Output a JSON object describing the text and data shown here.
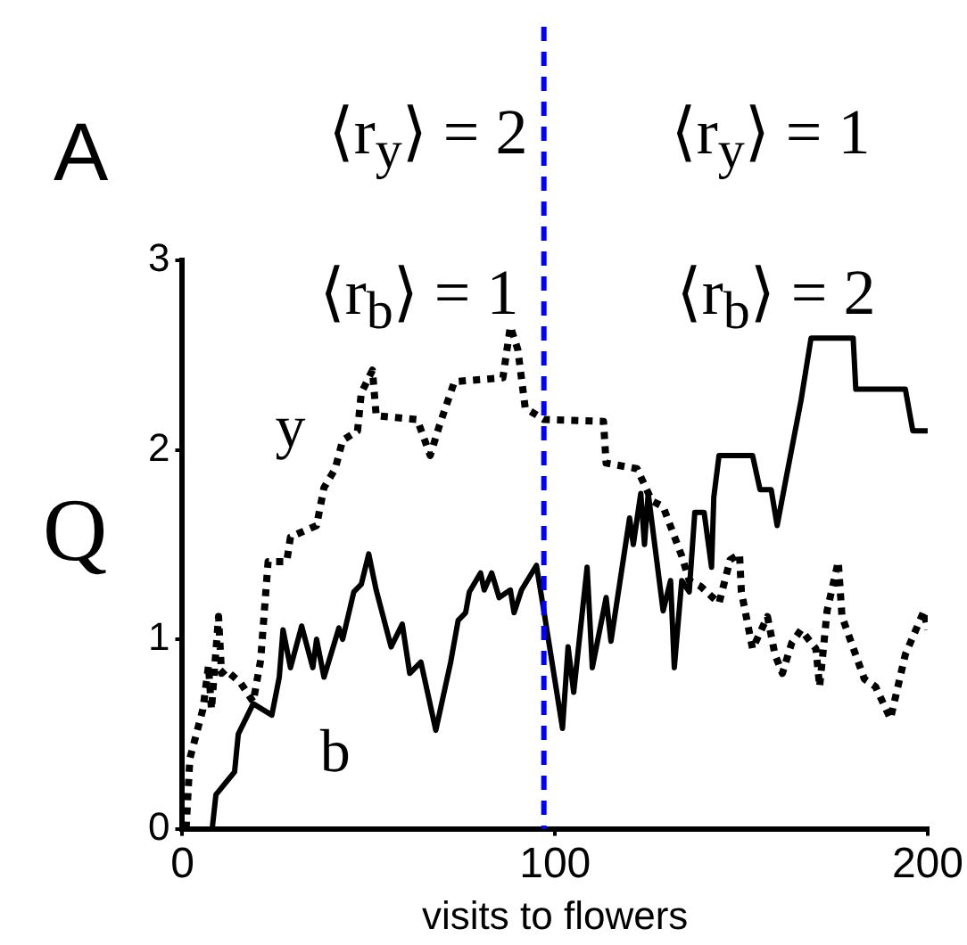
{
  "chart_data": {
    "type": "line",
    "title": "A",
    "xlabel": "visits to flowers",
    "ylabel": "Q",
    "annotations": [
      "⟨r$_{y}$⟩ = 2",
      "⟨r$_{y}$⟩ = 1",
      "⟨r$_{b}$⟩ = 1",
      "⟨r$_{b}$⟩ = 2"
    ],
    "xlim": [
      0,
      200
    ],
    "xticks": [
      0,
      100,
      200
    ],
    "ylim": [
      0,
      3
    ],
    "yticks": [
      0,
      1,
      2,
      3
    ],
    "grid": false,
    "legend": false,
    "marker": "none",
    "ref_lines": [
      {
        "axis": "x",
        "value": 97,
        "color": "#0000ff",
        "line_style": "dashed"
      }
    ],
    "series": [
      {
        "name": "y",
        "color": "#000000",
        "line_style": "dotted",
        "x": [
          1,
          2,
          5.5,
          7,
          7.8,
          9.7,
          10.5,
          11.6,
          15.6,
          19,
          21,
          23,
          28,
          29,
          36,
          38,
          41,
          43,
          47,
          48,
          51,
          52,
          63,
          66.5,
          69,
          73,
          86,
          88,
          90,
          92,
          97,
          113,
          113.7,
          122,
          126,
          129,
          134,
          136,
          139,
          144,
          147,
          149.5,
          150,
          153,
          157,
          159,
          161,
          163.5,
          166,
          170,
          171,
          173,
          176,
          177,
          183,
          186,
          190,
          194,
          199,
          200
        ],
        "values": [
          0,
          0.37,
          0.63,
          0.86,
          0.63,
          1.12,
          0.82,
          0.84,
          0.77,
          0.67,
          0.89,
          1.41,
          1.41,
          1.54,
          1.6,
          1.8,
          1.9,
          2.05,
          2.1,
          2.3,
          2.42,
          2.18,
          2.16,
          1.97,
          2.13,
          2.36,
          2.38,
          2.65,
          2.53,
          2.22,
          2.16,
          2.15,
          1.93,
          1.9,
          1.73,
          1.7,
          1.44,
          1.31,
          1.28,
          1.19,
          1.42,
          1.45,
          1.25,
          0.95,
          1.12,
          0.92,
          0.82,
          0.98,
          1.05,
          0.95,
          0.75,
          1.15,
          1.41,
          1.12,
          0.79,
          0.75,
          0.58,
          0.92,
          1.15,
          1.05
        ]
      },
      {
        "name": "b",
        "color": "#000000",
        "line_style": "solid",
        "x": [
          8,
          9,
          14,
          15,
          19,
          24,
          26,
          27,
          29,
          32,
          35,
          36,
          38,
          42,
          43,
          46,
          48,
          50,
          52,
          56,
          59,
          61,
          64,
          68,
          72,
          74,
          76,
          77,
          80,
          81,
          83,
          85,
          88,
          89,
          91,
          95,
          97,
          102,
          103.5,
          105,
          108.6,
          110,
          113.7,
          115,
          120,
          121,
          123,
          124,
          125,
          129,
          131,
          132,
          134,
          136,
          137.5,
          140,
          142,
          142.6,
          144,
          153,
          155,
          158,
          159.6,
          162,
          166,
          168.7,
          180,
          180.7,
          194,
          196,
          200
        ],
        "values": [
          0,
          0.18,
          0.3,
          0.5,
          0.66,
          0.6,
          0.8,
          1.05,
          0.85,
          1.07,
          0.85,
          1,
          0.8,
          1.06,
          1,
          1.25,
          1.29,
          1.45,
          1.26,
          0.96,
          1.08,
          0.82,
          0.88,
          0.52,
          0.88,
          1.1,
          1.14,
          1.25,
          1.35,
          1.26,
          1.35,
          1.22,
          1.26,
          1.14,
          1.26,
          1.39,
          1.15,
          0.53,
          0.96,
          0.72,
          1.38,
          0.85,
          1.22,
          0.99,
          1.64,
          1.5,
          1.77,
          1.5,
          1.77,
          1.15,
          1.31,
          0.85,
          1.31,
          1.25,
          1.67,
          1.67,
          1.38,
          1.75,
          1.97,
          1.97,
          1.79,
          1.79,
          1.6,
          1.85,
          2.26,
          2.59,
          2.59,
          2.32,
          2.32,
          2.1,
          2.1
        ]
      }
    ]
  }
}
